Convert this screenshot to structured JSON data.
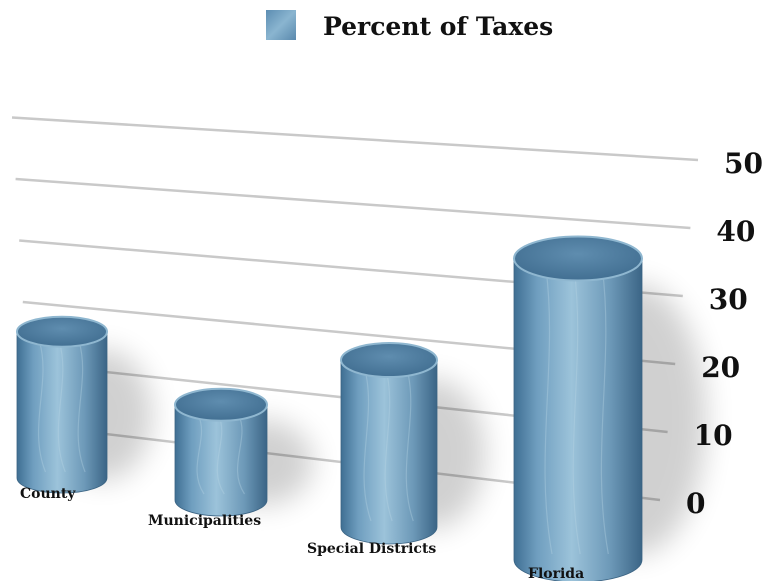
{
  "chart_data": {
    "type": "bar",
    "title": "",
    "legend": {
      "position": "top-center",
      "entries": [
        {
          "name": "Percent of Taxes",
          "color": "#6f9cbd"
        }
      ]
    },
    "categories": [
      "County",
      "Municipalities",
      "Special Districts",
      "Florida"
    ],
    "series": [
      {
        "name": "Percent of Taxes",
        "values": [
          19,
          14,
          21,
          45
        ]
      }
    ],
    "ylim": [
      0,
      50
    ],
    "yticks": [
      "0",
      "10",
      "20",
      "30",
      "40",
      "50"
    ],
    "grid": true,
    "bar_color": "#6f9cbd"
  }
}
